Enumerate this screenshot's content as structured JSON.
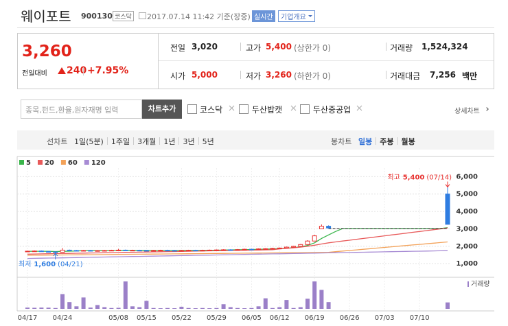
{
  "header": {
    "name": "웨이포트",
    "code": "900130",
    "market": "코스닥",
    "datetime": "2017.07.14 11:42 기준(장중)",
    "realtime": "실시간",
    "overview": "기업개요"
  },
  "quote": {
    "price": "3,260",
    "change_label": "전일대비",
    "change": "240",
    "change_pct": "+7.95%",
    "stats": [
      {
        "label": "전일",
        "value": "3,020"
      },
      {
        "label": "고가",
        "value": "5,400",
        "note": "(상한가 0)"
      },
      {
        "label": "거래량",
        "value": "1,524,324"
      },
      {
        "label": "시가",
        "value": "5,000"
      },
      {
        "label": "저가",
        "value": "3,260",
        "note": "(하한가 0)"
      },
      {
        "label": "거래대금",
        "value": "7,256",
        "unit": "백만"
      }
    ]
  },
  "search": {
    "placeholder": "종목,펀드,환율,원자재명 입력",
    "button": "차트추가",
    "compare": [
      "코스닥",
      "두산밥캣",
      "두산중공업"
    ],
    "detail": "상세차트"
  },
  "tabs": {
    "line_label": "선차트",
    "line_periods": [
      "1일(5분)",
      "1주일",
      "3개월",
      "1년",
      "3년",
      "5년"
    ],
    "candle_label": "봉차트",
    "candle_periods": [
      "일봉",
      "주봉",
      "월봉"
    ],
    "active_candle": 0
  },
  "chart_data": {
    "type": "candlestick",
    "categories": [
      "04/17",
      null,
      null,
      null,
      null,
      "04/24",
      null,
      null,
      null,
      null,
      null,
      null,
      null,
      "05/08",
      null,
      null,
      null,
      "05/15",
      null,
      null,
      null,
      null,
      "05/22",
      null,
      null,
      null,
      null,
      "05/29",
      null,
      null,
      null,
      null,
      "06/05",
      null,
      null,
      null,
      "06/12",
      null,
      null,
      null,
      null,
      "06/19",
      null,
      null,
      null,
      null,
      "06/26",
      null,
      null,
      null,
      null,
      "07/03",
      null,
      null,
      null,
      null,
      "07/10",
      null,
      null,
      null,
      null
    ],
    "open": [
      1710,
      1720,
      1730,
      1700,
      1680,
      1660,
      1780,
      1760,
      1750,
      1760,
      1740,
      1750,
      1760,
      1770,
      1780,
      1760,
      1770,
      1760,
      1750,
      1760,
      1770,
      1760,
      1750,
      1760,
      1770,
      1760,
      1770,
      1780,
      1790,
      1800,
      1790,
      1810,
      1830,
      1820,
      1850,
      1860,
      1880,
      1900,
      1950,
      2000,
      2100,
      2300,
      3000,
      3150,
      null,
      null,
      null,
      null,
      null,
      null,
      null,
      null,
      null,
      null,
      null,
      null,
      null,
      null,
      null,
      null,
      5000
    ],
    "high": [
      1750,
      1760,
      1760,
      1730,
      1710,
      1900,
      1810,
      1790,
      1790,
      1790,
      1780,
      1790,
      1800,
      1850,
      1810,
      1800,
      1800,
      1790,
      1790,
      1800,
      1800,
      1790,
      1790,
      1800,
      1800,
      1800,
      1810,
      1820,
      1830,
      1830,
      1840,
      1860,
      1860,
      1880,
      1890,
      1910,
      1930,
      1980,
      2030,
      2130,
      2350,
      2650,
      3250,
      3200,
      null,
      null,
      null,
      null,
      null,
      null,
      null,
      null,
      null,
      null,
      null,
      null,
      null,
      null,
      null,
      null,
      5400
    ],
    "low": [
      1690,
      1700,
      1680,
      1660,
      1600,
      1660,
      1740,
      1720,
      1730,
      1720,
      1720,
      1730,
      1740,
      1750,
      1740,
      1740,
      1740,
      1730,
      1730,
      1740,
      1740,
      1730,
      1730,
      1740,
      1740,
      1740,
      1750,
      1760,
      1770,
      1770,
      1770,
      1790,
      1800,
      1800,
      1830,
      1840,
      1860,
      1880,
      1930,
      1980,
      2080,
      2280,
      2980,
      3020,
      null,
      null,
      null,
      null,
      null,
      null,
      null,
      null,
      null,
      null,
      null,
      null,
      null,
      null,
      null,
      null,
      3260
    ],
    "close": [
      1720,
      1730,
      1700,
      1680,
      1650,
      1780,
      1760,
      1750,
      1760,
      1740,
      1750,
      1760,
      1770,
      1780,
      1760,
      1770,
      1760,
      1750,
      1760,
      1770,
      1760,
      1750,
      1760,
      1770,
      1760,
      1770,
      1780,
      1790,
      1800,
      1790,
      1810,
      1830,
      1820,
      1850,
      1860,
      1880,
      1900,
      1950,
      2000,
      2100,
      2300,
      2600,
      3150,
      3050,
      null,
      null,
      null,
      null,
      null,
      null,
      null,
      null,
      null,
      null,
      null,
      null,
      null,
      null,
      null,
      null,
      3260
    ],
    "up_color": "#e8312f",
    "down_color": "#2f7de1",
    "moving_averages": [
      {
        "name": "5",
        "color": "#39b54a",
        "values": [
          1710,
          1715,
          1715,
          1710,
          1700,
          1710,
          1720,
          1730,
          1750,
          1760,
          1750,
          1750,
          1755,
          1760,
          1765,
          1765,
          1770,
          1765,
          1760,
          1760,
          1760,
          1760,
          1760,
          1760,
          1760,
          1765,
          1770,
          1775,
          1785,
          1790,
          1800,
          1805,
          1815,
          1825,
          1835,
          1850,
          1865,
          1890,
          1920,
          1970,
          2050,
          2200,
          2450,
          2650,
          2850,
          3020,
          3020,
          3020,
          3020,
          3020,
          3020,
          3020,
          3020,
          3020,
          3020,
          3020,
          3020,
          3020,
          3020,
          3020,
          3070
        ]
      },
      {
        "name": "20",
        "color": "#e85a5a",
        "values": [
          1550,
          1557,
          1564,
          1571,
          1579,
          1586,
          1593,
          1600,
          1607,
          1614,
          1621,
          1629,
          1636,
          1643,
          1650,
          1657,
          1664,
          1671,
          1679,
          1686,
          1693,
          1700,
          1707,
          1714,
          1721,
          1729,
          1736,
          1743,
          1750,
          1757,
          1764,
          1771,
          1779,
          1786,
          1793,
          1800,
          1850,
          1880,
          1910,
          1950,
          2000,
          2060,
          2130,
          2200,
          2250,
          2300,
          2350,
          2400,
          2450,
          2500,
          2550,
          2600,
          2650,
          2700,
          2750,
          2800,
          2850,
          2900,
          2950,
          3000,
          3050
        ]
      },
      {
        "name": "60",
        "color": "#f3a259",
        "values": [
          1480,
          1484,
          1488,
          1492,
          1496,
          1500,
          1504,
          1508,
          1512,
          1516,
          1520,
          1524,
          1528,
          1532,
          1536,
          1540,
          1544,
          1548,
          1552,
          1556,
          1560,
          1564,
          1568,
          1572,
          1576,
          1580,
          1584,
          1588,
          1592,
          1596,
          1600,
          1604,
          1608,
          1612,
          1616,
          1620,
          1624,
          1628,
          1632,
          1636,
          1640,
          1644,
          1648,
          1652,
          1690,
          1725,
          1760,
          1795,
          1830,
          1865,
          1900,
          1935,
          1970,
          2005,
          2040,
          2075,
          2110,
          2145,
          2180,
          2215,
          2250
        ]
      },
      {
        "name": "120",
        "color": "#a78bd4",
        "values": [
          1300,
          1308,
          1315,
          1323,
          1330,
          1338,
          1345,
          1353,
          1360,
          1368,
          1375,
          1383,
          1390,
          1398,
          1405,
          1413,
          1420,
          1428,
          1435,
          1443,
          1450,
          1458,
          1465,
          1473,
          1480,
          1488,
          1495,
          1503,
          1510,
          1518,
          1525,
          1533,
          1540,
          1548,
          1555,
          1563,
          1570,
          1578,
          1585,
          1593,
          1600,
          1608,
          1615,
          1623,
          1630,
          1638,
          1645,
          1653,
          1660,
          1668,
          1675,
          1683,
          1690,
          1698,
          1705,
          1713,
          1720,
          1728,
          1735,
          1743,
          1750
        ]
      }
    ],
    "halt_price": 3020,
    "high_marker": {
      "label": "최고",
      "value": 5400,
      "value_label": "5,400",
      "date": "(07/14)"
    },
    "low_marker": {
      "label": "최저",
      "value": 1600,
      "value_label": "1,600",
      "date": "(04/21)"
    },
    "ylim": [
      300,
      6800
    ],
    "yticks": [
      {
        "value": 1000,
        "label": "1,000"
      },
      {
        "value": 2000,
        "label": "2,000"
      },
      {
        "value": 3000,
        "label": "3,000"
      },
      {
        "value": 4000,
        "label": "4,000"
      },
      {
        "value": 5000,
        "label": "5,000"
      },
      {
        "value": 6000,
        "label": "6,000"
      }
    ],
    "grid": true,
    "volume": {
      "label": "거래량",
      "color": "#9b80c8",
      "ylim": [
        0,
        7000000
      ],
      "values": [
        300000,
        250000,
        300000,
        280000,
        200000,
        3500000,
        1600000,
        600000,
        2700000,
        300000,
        900000,
        400000,
        200000,
        250000,
        6500000,
        600000,
        400000,
        1900000,
        200000,
        150000,
        200000,
        150000,
        500000,
        200000,
        150000,
        200000,
        150000,
        200000,
        1100000,
        400000,
        200000,
        150000,
        200000,
        600000,
        2500000,
        200000,
        400000,
        2100000,
        200000,
        400000,
        2400000,
        6500000,
        4500000,
        1600000,
        null,
        null,
        null,
        null,
        null,
        null,
        null,
        null,
        null,
        null,
        null,
        null,
        null,
        null,
        null,
        null,
        1524324
      ]
    }
  }
}
